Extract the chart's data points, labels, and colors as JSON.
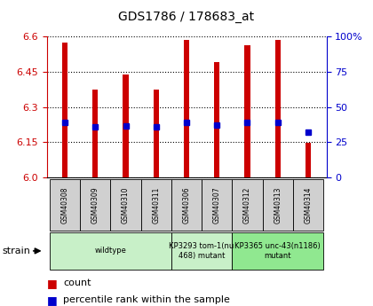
{
  "title": "GDS1786 / 178683_at",
  "samples": [
    "GSM40308",
    "GSM40309",
    "GSM40310",
    "GSM40311",
    "GSM40306",
    "GSM40307",
    "GSM40312",
    "GSM40313",
    "GSM40314"
  ],
  "bar_tops": [
    6.575,
    6.375,
    6.44,
    6.375,
    6.585,
    6.49,
    6.565,
    6.585,
    6.148
  ],
  "bar_bottoms": [
    6.0,
    6.0,
    6.0,
    6.0,
    6.0,
    6.0,
    6.0,
    6.0,
    6.0
  ],
  "percentile_values": [
    6.235,
    6.215,
    6.22,
    6.215,
    6.235,
    6.225,
    6.235,
    6.235,
    6.195
  ],
  "ylim": [
    6.0,
    6.6
  ],
  "yticks": [
    6.0,
    6.15,
    6.3,
    6.45,
    6.6
  ],
  "right_yticks": [
    0,
    25,
    50,
    75,
    100
  ],
  "bar_color": "#cc0000",
  "dot_color": "#0000cc",
  "bar_width": 0.18,
  "groups": [
    {
      "label": "wildtype",
      "start": 0,
      "end": 4,
      "color": "#c8f0c8"
    },
    {
      "label": "KP3293 tom-1(nu\n468) mutant",
      "start": 4,
      "end": 6,
      "color": "#c8f0c8"
    },
    {
      "label": "KP3365 unc-43(n1186)\nmutant",
      "start": 6,
      "end": 9,
      "color": "#90e890"
    }
  ],
  "strain_label": "strain",
  "legend_count_label": "count",
  "legend_pct_label": "percentile rank within the sample",
  "left_axis_color": "#cc0000",
  "right_axis_color": "#0000cc",
  "sample_box_color": "#d0d0d0"
}
